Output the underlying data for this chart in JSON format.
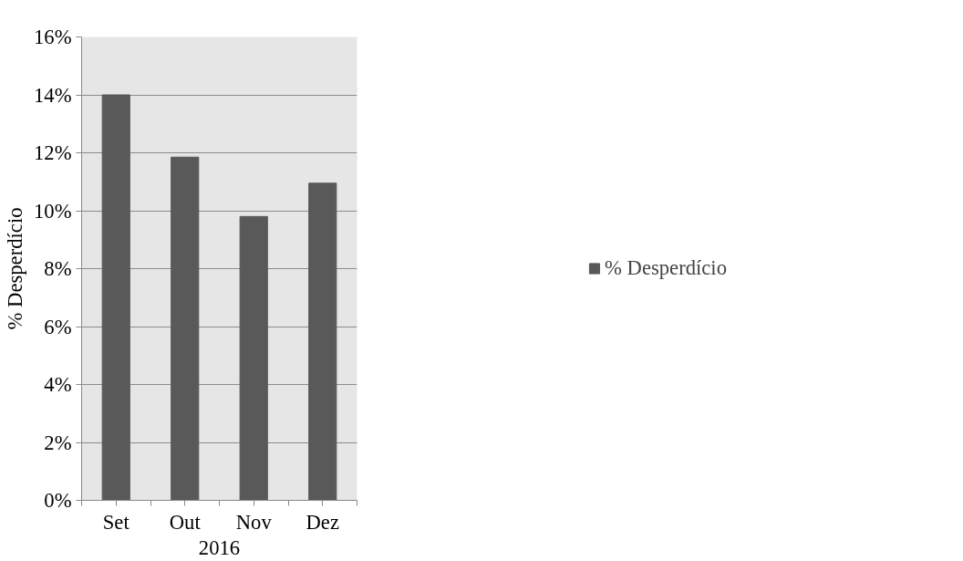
{
  "chart_data": {
    "type": "bar",
    "xlabel": "2016",
    "ylabel": "% Desperdício",
    "categories": [
      "Set",
      "Out",
      "Nov",
      "Dez"
    ],
    "series": [
      {
        "name": "% Desperdício",
        "color": "#595959",
        "values": [
          14.0,
          11.85,
          9.8,
          10.95
        ]
      }
    ],
    "ylim": [
      0,
      16
    ],
    "yticks": [
      {
        "value": 0,
        "label": "0%"
      },
      {
        "value": 2,
        "label": "2%"
      },
      {
        "value": 4,
        "label": "4%"
      },
      {
        "value": 6,
        "label": "6%"
      },
      {
        "value": 8,
        "label": "8%"
      },
      {
        "value": 10,
        "label": "10%"
      },
      {
        "value": 12,
        "label": "12%"
      },
      {
        "value": 14,
        "label": "14%"
      },
      {
        "value": 16,
        "label": "16%"
      }
    ],
    "grid": "y",
    "legend": "right"
  }
}
